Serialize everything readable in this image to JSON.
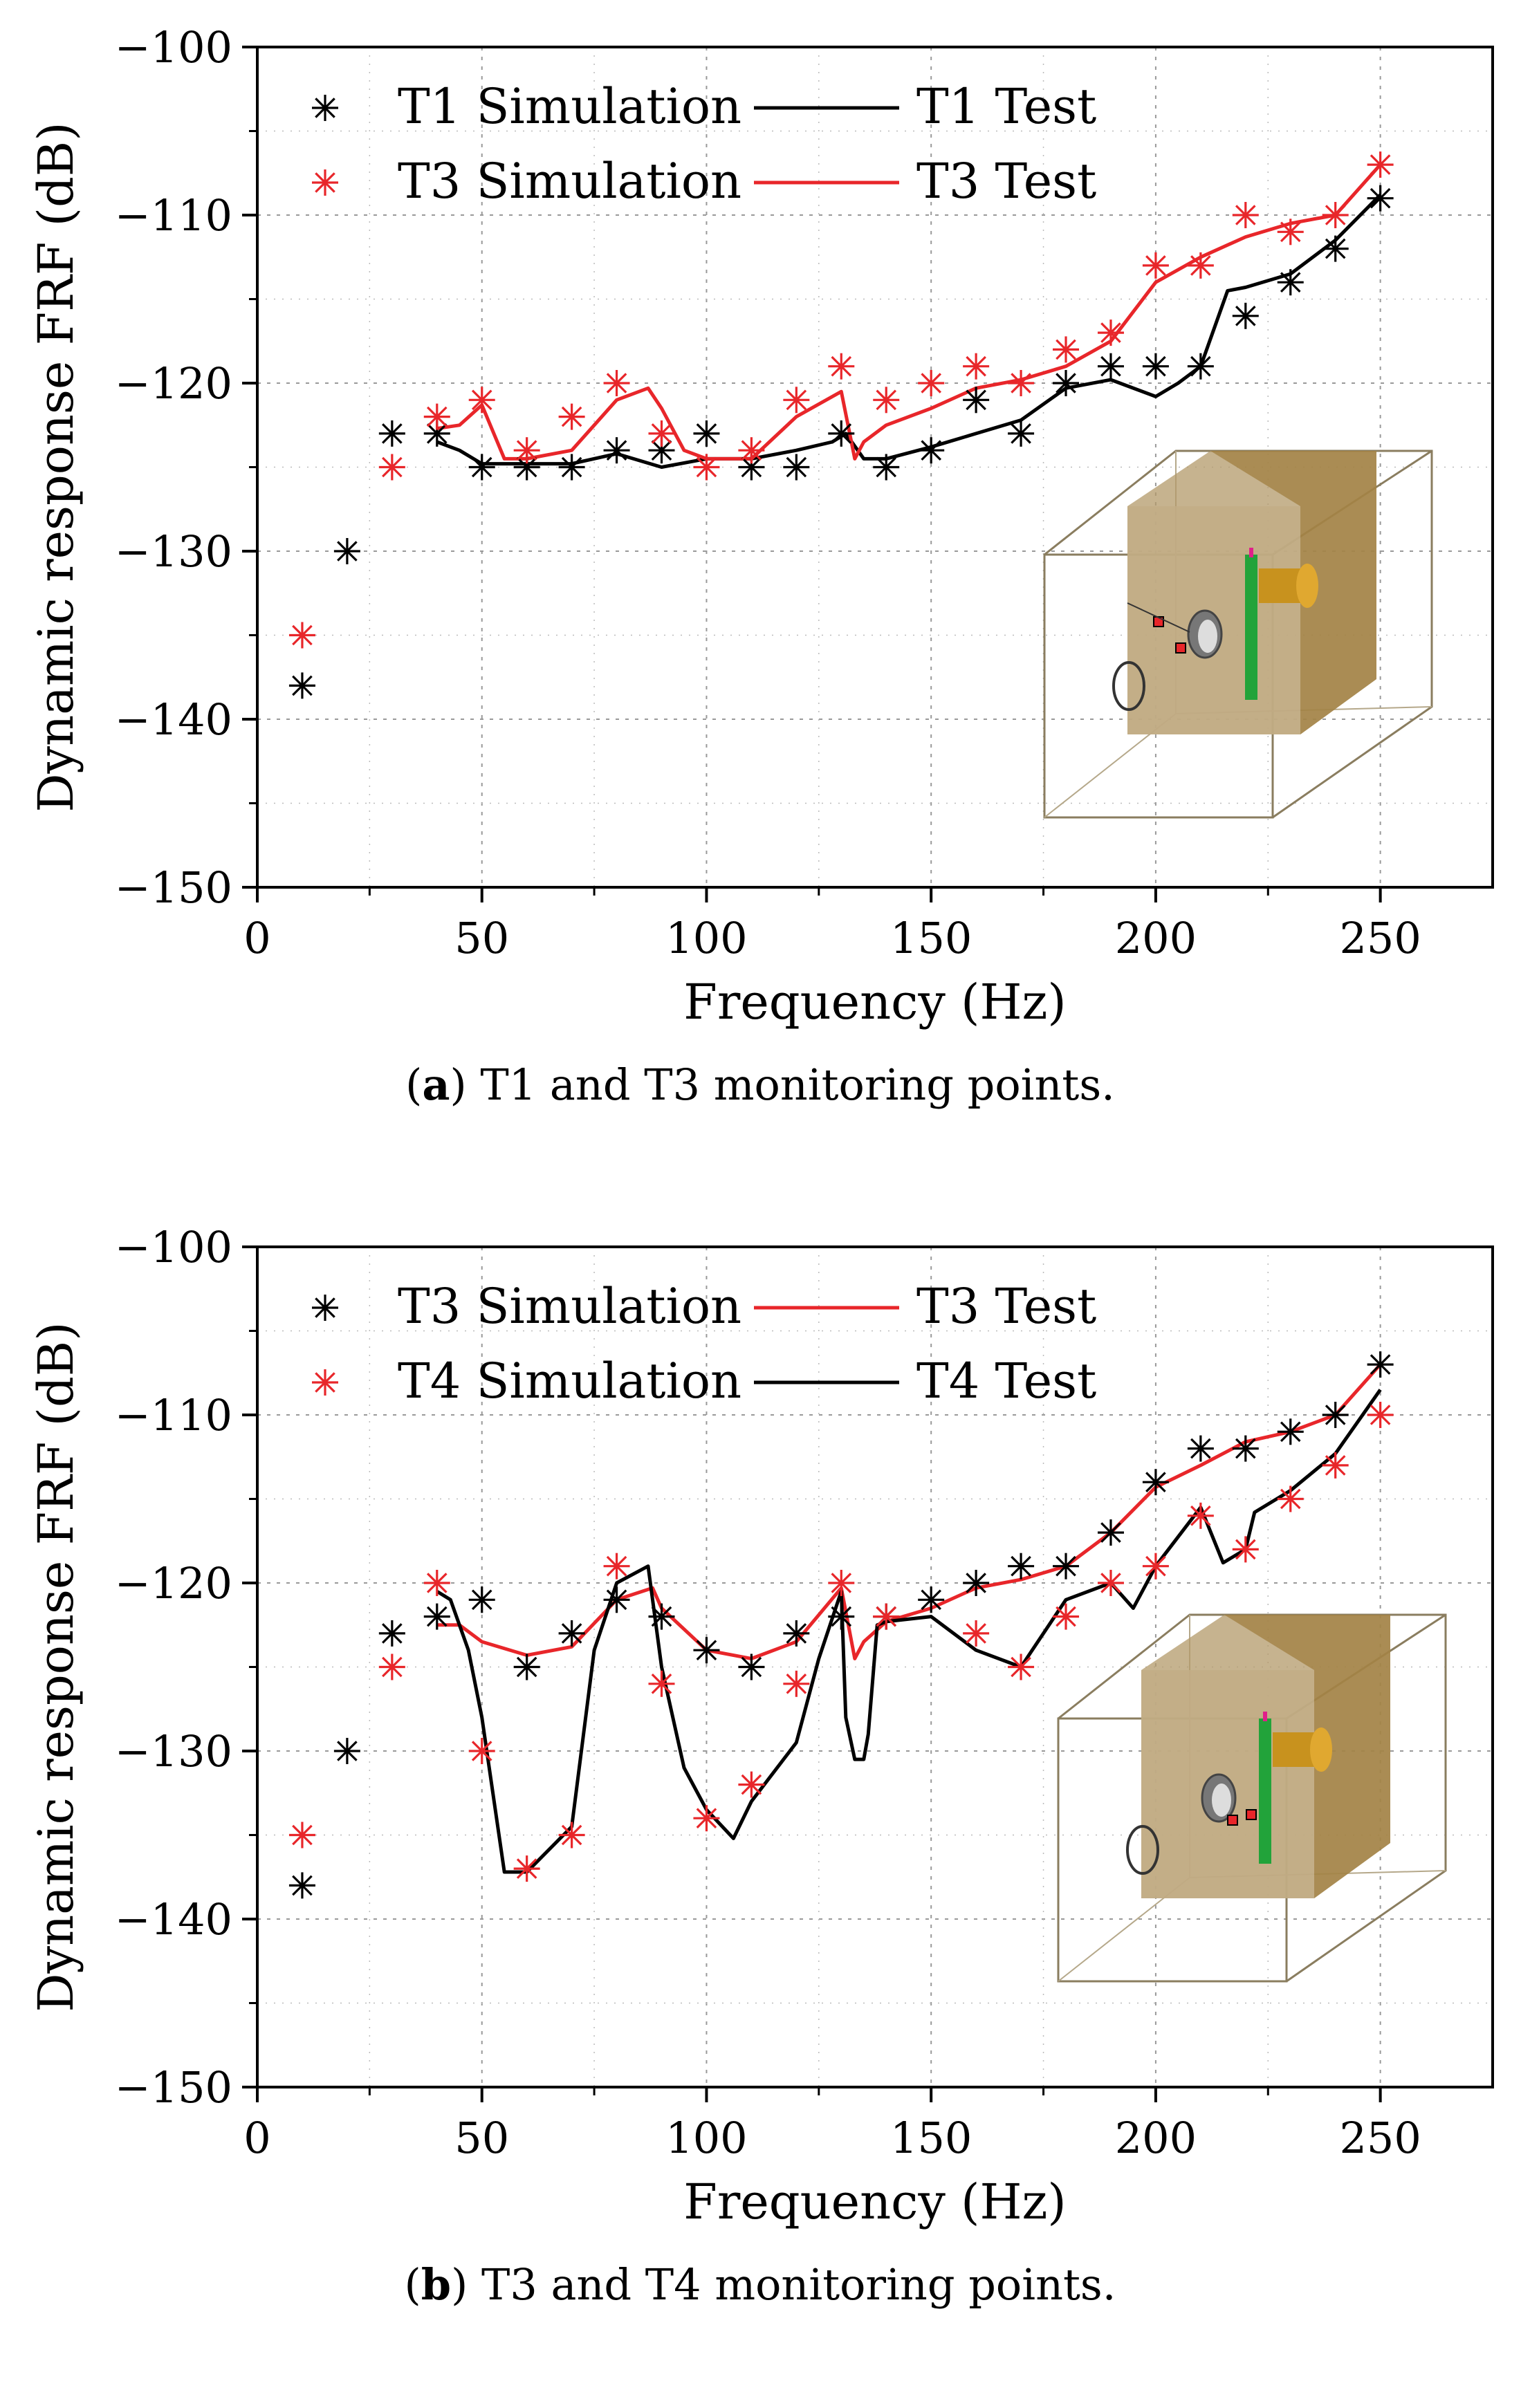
{
  "chart_data": [
    {
      "panel": "a",
      "type": "line",
      "caption": {
        "letter": "a",
        "text": " T1 and T3 monitoring points."
      },
      "xlabel": "Frequency (Hz)",
      "ylabel": "Dynamic response FRF (dB)",
      "xlim": [
        0,
        275
      ],
      "ylim": [
        -150,
        -100
      ],
      "xticks": [
        0,
        50,
        100,
        150,
        200,
        250
      ],
      "yticks": [
        -100,
        -110,
        -120,
        -130,
        -140,
        -150
      ],
      "grid": true,
      "legend_position": "top-left",
      "series": [
        {
          "name": "T1 Simulation",
          "kind": "scatter",
          "marker": "asterisk",
          "color": "#000000",
          "x": [
            10,
            20,
            30,
            40,
            50,
            60,
            70,
            80,
            90,
            100,
            110,
            120,
            130,
            140,
            150,
            160,
            170,
            180,
            190,
            200,
            210,
            220,
            230,
            240,
            250
          ],
          "y": [
            -138,
            -130,
            -123,
            -123,
            -125,
            -125,
            -125,
            -124,
            -124,
            -123,
            -125,
            -125,
            -123,
            -125,
            -124,
            -121,
            -123,
            -120,
            -119,
            -119,
            -119,
            -116,
            -114,
            -112,
            -109
          ]
        },
        {
          "name": "T1 Test",
          "kind": "line",
          "color": "#000000",
          "x": [
            40,
            45,
            50,
            60,
            70,
            80,
            90,
            100,
            110,
            120,
            128,
            131,
            135,
            140,
            150,
            160,
            170,
            180,
            190,
            200,
            205,
            210,
            216,
            220,
            230,
            240,
            250
          ],
          "y": [
            -123.5,
            -124,
            -124.8,
            -124.8,
            -124.8,
            -124.2,
            -125,
            -124.5,
            -124.5,
            -124,
            -123.5,
            -123,
            -124.5,
            -124.5,
            -123.8,
            -123,
            -122.2,
            -120.3,
            -119.8,
            -120.8,
            -120,
            -119,
            -114.5,
            -114.3,
            -113.5,
            -111.5,
            -108.8
          ]
        },
        {
          "name": "T3 Simulation",
          "kind": "scatter",
          "marker": "asterisk",
          "color": "#e8262a",
          "x": [
            10,
            30,
            40,
            50,
            60,
            70,
            80,
            90,
            100,
            110,
            120,
            130,
            140,
            150,
            160,
            170,
            180,
            190,
            200,
            210,
            220,
            230,
            240,
            250
          ],
          "y": [
            -135,
            -125,
            -122,
            -121,
            -124,
            -122,
            -120,
            -123,
            -125,
            -124,
            -121,
            -119,
            -121,
            -120,
            -119,
            -120,
            -118,
            -117,
            -113,
            -113,
            -110,
            -111,
            -110,
            -107
          ]
        },
        {
          "name": "T3 Test",
          "kind": "line",
          "color": "#e8262a",
          "x": [
            40,
            45,
            50,
            55,
            60,
            70,
            75,
            80,
            87,
            90,
            95,
            100,
            110,
            120,
            130,
            133,
            135,
            140,
            150,
            160,
            170,
            180,
            190,
            200,
            210,
            220,
            230,
            240,
            250
          ],
          "y": [
            -122.7,
            -122.5,
            -121.3,
            -124.5,
            -124.5,
            -124,
            -122.5,
            -121,
            -120.3,
            -121.5,
            -124,
            -124.5,
            -124.5,
            -122,
            -120.5,
            -124.5,
            -123.5,
            -122.5,
            -121.5,
            -120.3,
            -119.8,
            -119,
            -117.5,
            -114,
            -112.5,
            -111.3,
            -110.5,
            -110,
            -107
          ]
        }
      ]
    },
    {
      "panel": "b",
      "type": "line",
      "caption": {
        "letter": "b",
        "text": " T3 and T4 monitoring points."
      },
      "xlabel": "Frequency (Hz)",
      "ylabel": "Dynamic response FRF (dB)",
      "xlim": [
        0,
        275
      ],
      "ylim": [
        -150,
        -100
      ],
      "xticks": [
        0,
        50,
        100,
        150,
        200,
        250
      ],
      "yticks": [
        -100,
        -110,
        -120,
        -130,
        -140,
        -150
      ],
      "grid": true,
      "legend_position": "top-left",
      "series": [
        {
          "name": "T3 Simulation",
          "kind": "scatter",
          "marker": "asterisk",
          "color": "#000000",
          "x": [
            10,
            20,
            30,
            40,
            50,
            60,
            70,
            80,
            90,
            100,
            110,
            120,
            130,
            140,
            150,
            160,
            170,
            180,
            190,
            200,
            210,
            220,
            230,
            240,
            250
          ],
          "y": [
            -138,
            -130,
            -123,
            -122,
            -121,
            -125,
            -123,
            -121,
            -122,
            -124,
            -125,
            -123,
            -122,
            -122,
            -121,
            -120,
            -119,
            -119,
            -117,
            -114,
            -112,
            -112,
            -111,
            -110,
            -107
          ]
        },
        {
          "name": "T3 Test",
          "kind": "line",
          "color": "#e8262a",
          "x": [
            40,
            45,
            50,
            60,
            70,
            80,
            88,
            90,
            100,
            110,
            120,
            130,
            133,
            135,
            140,
            150,
            160,
            170,
            180,
            190,
            200,
            210,
            220,
            230,
            240,
            250
          ],
          "y": [
            -122.5,
            -122.5,
            -123.5,
            -124.3,
            -123.8,
            -121,
            -120.3,
            -121.5,
            -124,
            -124.5,
            -123.5,
            -120.3,
            -124.5,
            -123.5,
            -122.3,
            -121.5,
            -120.3,
            -119.8,
            -119,
            -117,
            -114.3,
            -113,
            -111.6,
            -111,
            -110,
            -107
          ]
        },
        {
          "name": "T4 Simulation",
          "kind": "scatter",
          "marker": "asterisk",
          "color": "#e8262a",
          "x": [
            10,
            30,
            40,
            50,
            60,
            70,
            80,
            90,
            100,
            110,
            120,
            130,
            140,
            160,
            170,
            180,
            190,
            200,
            210,
            220,
            230,
            240,
            250
          ],
          "y": [
            -135,
            -125,
            -120,
            -130,
            -137,
            -135,
            -119,
            -126,
            -134,
            -132,
            -126,
            -120,
            -122,
            -123,
            -125,
            -122,
            -120,
            -119,
            -116,
            -118,
            -115,
            -113,
            -110
          ]
        },
        {
          "name": "T4 Test",
          "kind": "line",
          "color": "#000000",
          "x": [
            40,
            43,
            47,
            50,
            55,
            60,
            70,
            75,
            80,
            87,
            90,
            95,
            100,
            106,
            110,
            120,
            125,
            130,
            131,
            133,
            135,
            136,
            138,
            140,
            150,
            160,
            170,
            180,
            190,
            195,
            200,
            210,
            215,
            220,
            222,
            230,
            240,
            250
          ],
          "y": [
            -120.5,
            -121,
            -124,
            -128,
            -137.2,
            -137.2,
            -134.5,
            -124,
            -120,
            -119,
            -125,
            -131,
            -133.5,
            -135.2,
            -133,
            -129.5,
            -124.5,
            -120.5,
            -128,
            -130.5,
            -130.5,
            -129,
            -122.5,
            -122.3,
            -122,
            -124,
            -125,
            -121,
            -120,
            -121.5,
            -119,
            -115.5,
            -118.8,
            -118,
            -115.8,
            -114.5,
            -112.3,
            -108.5
          ]
        }
      ]
    }
  ]
}
